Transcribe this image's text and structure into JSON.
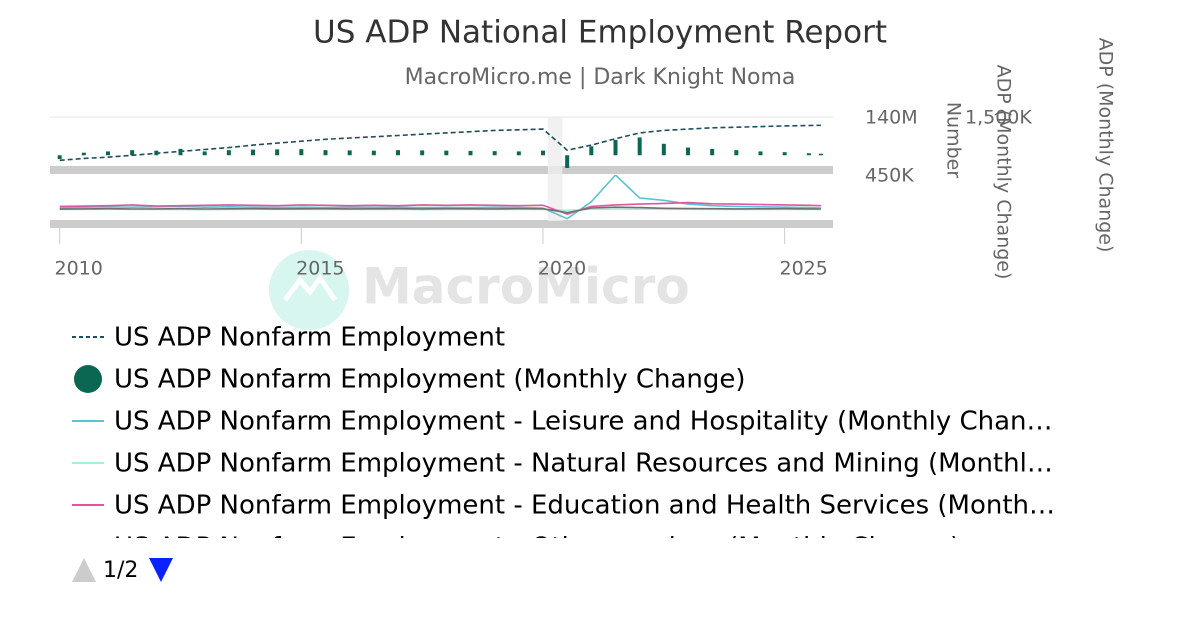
{
  "title": "US ADP National Employment Report",
  "subtitle": "MacroMicro.me | Dark Knight Noma",
  "watermark": "MacroMicro",
  "legend_page": "1/2",
  "chart_data": [
    {
      "type": "combo",
      "ylabel": "Number",
      "y2label": "ADP (Monthly Change)",
      "x": [
        2010,
        2010.5,
        2011,
        2011.5,
        2012,
        2012.5,
        2013,
        2013.5,
        2014,
        2014.5,
        2015,
        2015.5,
        2016,
        2016.5,
        2017,
        2017.5,
        2018,
        2018.5,
        2019,
        2019.5,
        2020,
        2020.5,
        2021,
        2021.5,
        2022,
        2022.5,
        2023,
        2023.5,
        2024,
        2024.5,
        2025,
        2025.5,
        2025.75
      ],
      "xlim": [
        2009.8,
        2026
      ],
      "shaded": [
        2020.1,
        2020.4
      ],
      "ylim": [
        100000000,
        140000000
      ],
      "yticks": [
        {
          "value": 140000000,
          "label": "140M"
        }
      ],
      "y2lim": [
        -500000,
        1500000
      ],
      "y2ticks": [
        {
          "value": 1500000,
          "label": "1,500K"
        }
      ],
      "series": [
        {
          "name": "US ADP Nonfarm Employment",
          "kind": "line",
          "dashed": true,
          "color": "#1f4e5f",
          "values": [
            106000000,
            107500000,
            108500000,
            110000000,
            111500000,
            113000000,
            114500000,
            116000000,
            118000000,
            119500000,
            121000000,
            122500000,
            123500000,
            124500000,
            125500000,
            126500000,
            127500000,
            128500000,
            129500000,
            130000000,
            130500000,
            114000000,
            118000000,
            123000000,
            127500000,
            129500000,
            130500000,
            131500000,
            132000000,
            132500000,
            133000000,
            133300000,
            133500000
          ]
        },
        {
          "name": "US ADP Nonfarm Employment (Monthly Change)",
          "kind": "bar",
          "axis": "y2",
          "color": "#0b6652",
          "values": [
            -150000,
            100000,
            150000,
            200000,
            180000,
            250000,
            150000,
            200000,
            220000,
            230000,
            240000,
            200000,
            190000,
            180000,
            200000,
            190000,
            180000,
            170000,
            160000,
            150000,
            180000,
            -500000,
            350000,
            600000,
            700000,
            450000,
            300000,
            250000,
            200000,
            150000,
            120000,
            80000,
            60000
          ]
        }
      ]
    },
    {
      "type": "line",
      "ylabel": "ADP (Monthly Change)",
      "x": [
        2010,
        2010.5,
        2011,
        2011.5,
        2012,
        2012.5,
        2013,
        2013.5,
        2014,
        2014.5,
        2015,
        2015.5,
        2016,
        2016.5,
        2017,
        2017.5,
        2018,
        2018.5,
        2019,
        2019.5,
        2020,
        2020.5,
        2021,
        2021.5,
        2022,
        2022.5,
        2023,
        2023.5,
        2024,
        2024.5,
        2025,
        2025.5,
        2025.75
      ],
      "xlim": [
        2009.8,
        2026
      ],
      "xticks": [
        2010,
        2015,
        2020,
        2025
      ],
      "ylim": [
        -150000,
        450000
      ],
      "yticks": [
        {
          "value": 450000,
          "label": "450K"
        }
      ],
      "series": [
        {
          "name": "US ADP Nonfarm Employment - Leisure and Hospitality (Monthly Chan…",
          "color": "#5bc2d0",
          "values": [
            20000,
            30000,
            35000,
            30000,
            35000,
            40000,
            30000,
            35000,
            30000,
            25000,
            30000,
            25000,
            30000,
            28000,
            30000,
            25000,
            28000,
            25000,
            30000,
            25000,
            20000,
            -120000,
            100000,
            450000,
            150000,
            120000,
            70000,
            50000,
            40000,
            35000,
            30000,
            25000,
            20000
          ]
        },
        {
          "name": "US ADP Nonfarm Employment - Natural Resources and Mining (Monthl…",
          "color": "#a6efdc",
          "values": [
            1000,
            2000,
            3000,
            2000,
            1000,
            -1000,
            -3000,
            0,
            2000,
            3000,
            2000,
            1000,
            2000,
            1000,
            0,
            -2000,
            -1000,
            0,
            1000,
            0,
            1000,
            -10000,
            2000,
            5000,
            4000,
            3000,
            2000,
            1000,
            1000,
            0,
            1000,
            0,
            1000
          ]
        },
        {
          "name": "US ADP Nonfarm Employment - Education and Health Services (Month…",
          "color": "#e0569a",
          "values": [
            40000,
            45000,
            50000,
            60000,
            45000,
            50000,
            55000,
            60000,
            55000,
            50000,
            60000,
            55000,
            50000,
            55000,
            50000,
            60000,
            55000,
            60000,
            55000,
            50000,
            55000,
            -60000,
            40000,
            60000,
            70000,
            80000,
            90000,
            75000,
            70000,
            65000,
            60000,
            55000,
            50000
          ]
        },
        {
          "name": "US ADP Nonfarm Employment - Other services (Monthly Change)",
          "color": "#707070",
          "values": [
            5000,
            8000,
            10000,
            6000,
            8000,
            10000,
            7000,
            9000,
            10000,
            8000,
            9000,
            10000,
            8000,
            9000,
            10000,
            8000,
            10000,
            9000,
            8000,
            10000,
            9000,
            -40000,
            20000,
            30000,
            25000,
            15000,
            12000,
            10000,
            8000,
            9000,
            10000,
            8000,
            7000
          ]
        }
      ]
    }
  ]
}
